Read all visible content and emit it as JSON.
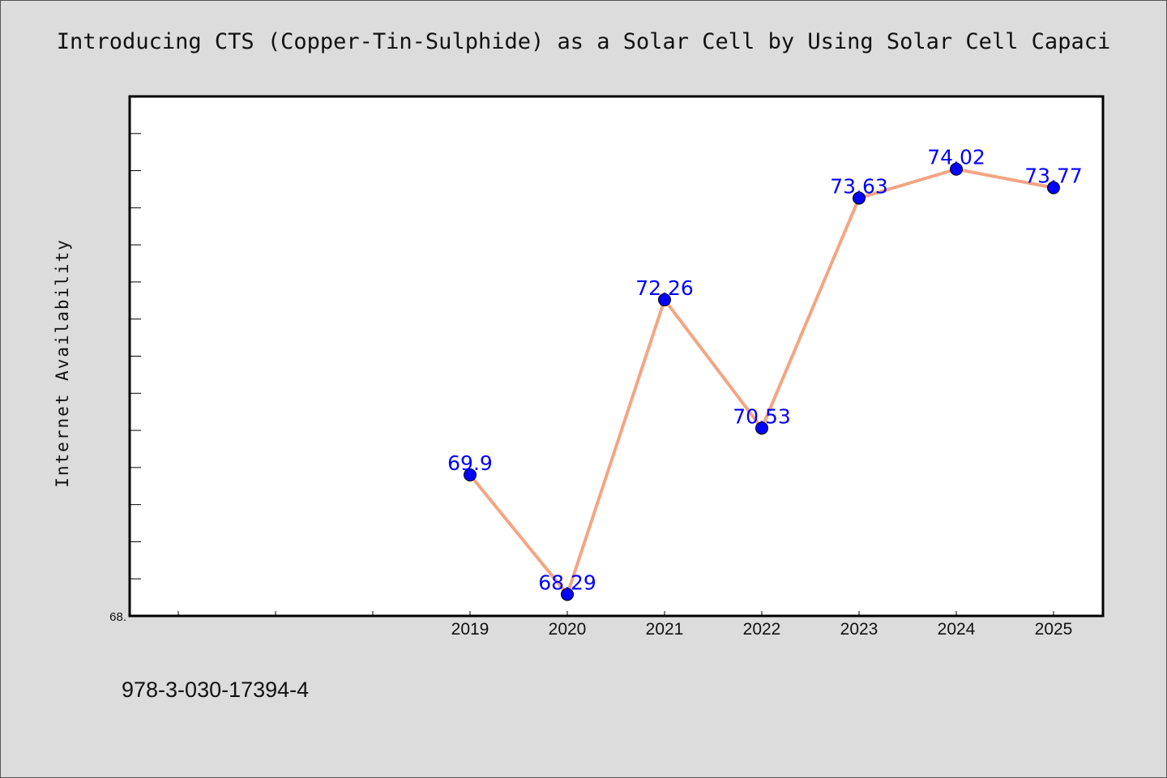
{
  "chart_data": {
    "type": "line",
    "title": "Introducing CTS (Copper-Tin-Sulphide) as a Solar Cell by Using Solar Cell Capaci",
    "xlabel": "",
    "ylabel": "Internet Availability",
    "x": [
      "2019",
      "2020",
      "2021",
      "2022",
      "2023",
      "2024",
      "2025"
    ],
    "series": [
      {
        "values": [
          69.9,
          68.29,
          72.26,
          70.53,
          73.63,
          74.02,
          73.77
        ],
        "data_labels": [
          "69.9",
          "68.29",
          "72.26",
          "70.53",
          "73.63",
          "74.02",
          "73.77"
        ]
      }
    ],
    "ylim": [
      68,
      75
    ],
    "y_min_label": "68.",
    "x_slots_before_first": 3,
    "grid": false,
    "legend": "none",
    "line_color": "#f4a582",
    "marker_color": "#0000ff",
    "label_color": "#0000ff",
    "background_color": "#dcdcdc",
    "plot_background_color": "#ffffff"
  },
  "footer": {
    "isbn": "978-3-030-17394-4"
  }
}
